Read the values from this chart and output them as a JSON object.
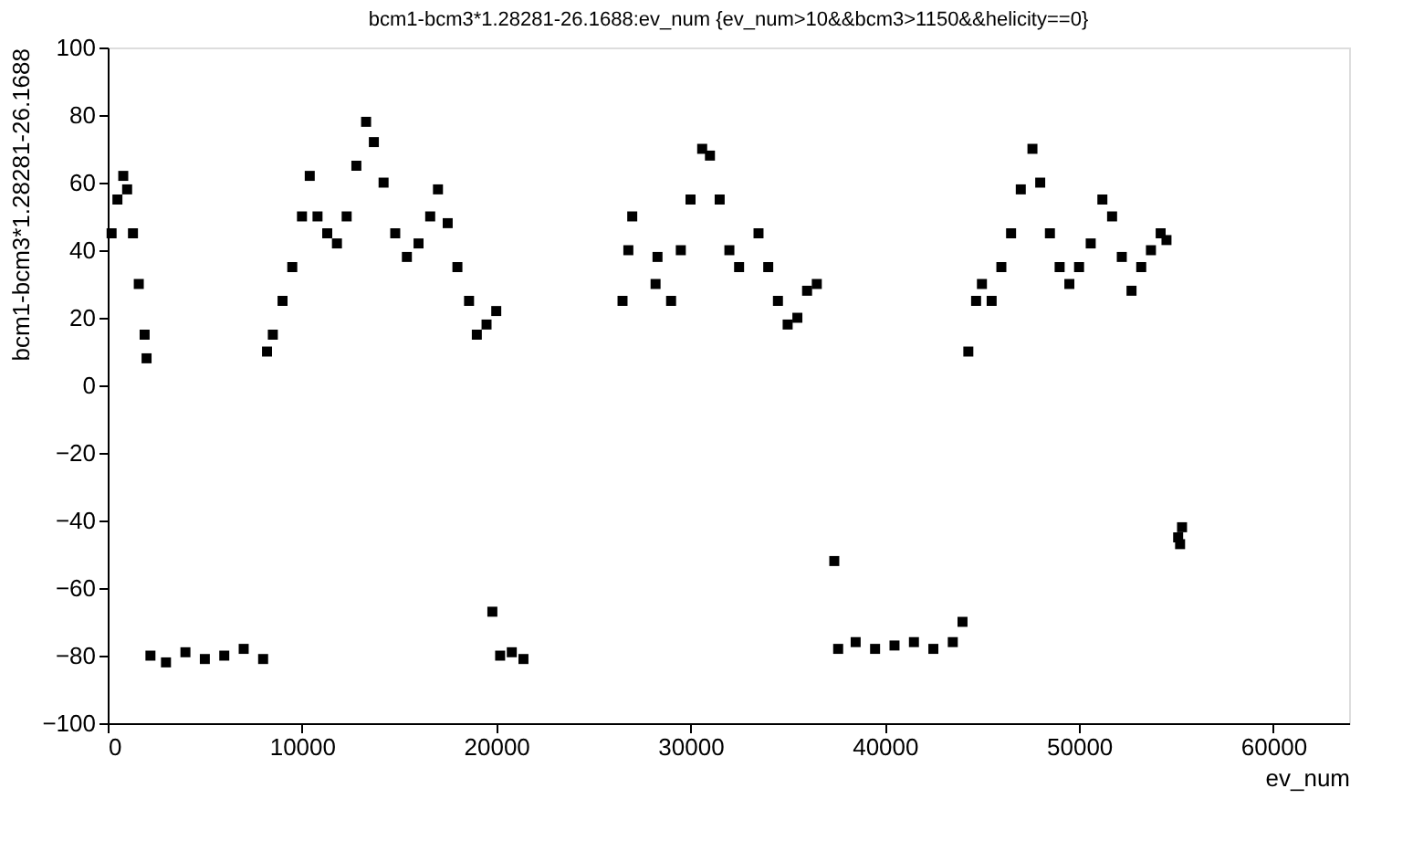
{
  "chart_data": {
    "type": "scatter",
    "title": "bcm1-bcm3*1.28281-26.1688:ev_num {ev_num>10&&bcm3>1150&&helicity==0}",
    "xlabel": "ev_num",
    "ylabel": "bcm1-bcm3*1.28281-26.1688",
    "xlim": [
      0,
      63900
    ],
    "ylim": [
      -100,
      100
    ],
    "xticks": [
      0,
      10000,
      20000,
      30000,
      40000,
      50000,
      60000
    ],
    "yticks": [
      -100,
      -80,
      -60,
      -40,
      -20,
      0,
      20,
      40,
      60,
      80,
      100
    ],
    "grid": false,
    "marker": "square",
    "legend": false,
    "series": [
      {
        "color": "#000000",
        "x": [
          200,
          500,
          800,
          1000,
          1300,
          1600,
          1900,
          2000,
          2200,
          3000,
          4000,
          5000,
          6000,
          7000,
          8000,
          8200,
          8500,
          9000,
          9500,
          10000,
          10400,
          10800,
          11300,
          11800,
          12300,
          12800,
          13300,
          13700,
          14200,
          14800,
          15400,
          16000,
          16600,
          17000,
          17500,
          18000,
          18600,
          19000,
          19500,
          20000,
          19800,
          20200,
          20800,
          21400,
          26500,
          26800,
          27000,
          28200,
          28300,
          29000,
          29500,
          30000,
          30600,
          31000,
          31500,
          32000,
          32500,
          33500,
          34000,
          34500,
          35000,
          35500,
          36000,
          36500,
          37400,
          37600,
          38500,
          39500,
          40500,
          41500,
          42500,
          43500,
          44000,
          44300,
          44700,
          45000,
          45500,
          46000,
          46500,
          47000,
          47600,
          48000,
          48500,
          49000,
          49500,
          50000,
          50600,
          51200,
          51700,
          52200,
          52700,
          53200,
          53700,
          54200,
          54500,
          55100,
          55200,
          55300
        ],
        "values": [
          45,
          55,
          62,
          58,
          45,
          30,
          15,
          8,
          -80,
          -82,
          -79,
          -81,
          -80,
          -78,
          -81,
          10,
          15,
          25,
          35,
          50,
          62,
          50,
          45,
          42,
          50,
          65,
          78,
          72,
          60,
          45,
          38,
          42,
          50,
          58,
          48,
          35,
          25,
          15,
          18,
          22,
          -67,
          -80,
          -79,
          -81,
          25,
          40,
          50,
          30,
          38,
          25,
          40,
          55,
          70,
          68,
          55,
          40,
          35,
          45,
          35,
          25,
          18,
          20,
          28,
          30,
          -52,
          -78,
          -76,
          -78,
          -77,
          -76,
          -78,
          -76,
          -70,
          10,
          25,
          30,
          25,
          35,
          45,
          58,
          70,
          60,
          45,
          35,
          30,
          35,
          42,
          55,
          50,
          38,
          28,
          35,
          40,
          45,
          43,
          -45,
          -47,
          -42
        ]
      }
    ]
  }
}
